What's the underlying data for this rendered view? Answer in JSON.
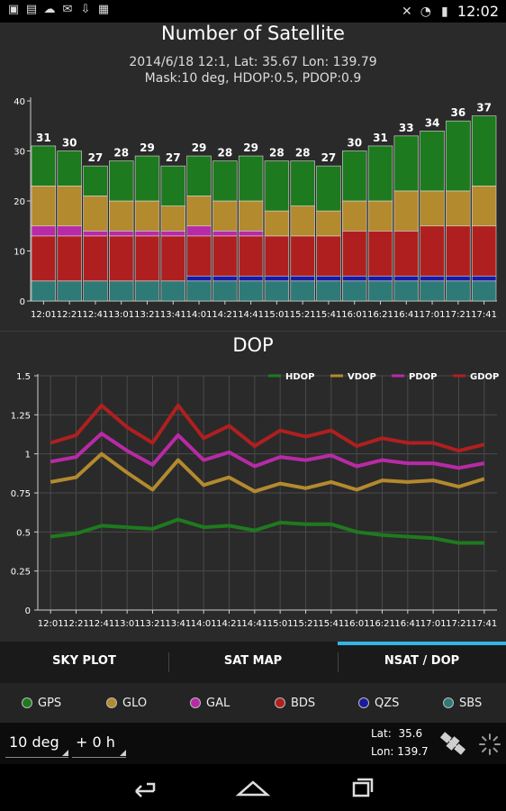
{
  "status_bar": {
    "time": "12:02",
    "left_icons": [
      "gps-notify-icon",
      "image-icon",
      "upload-icon",
      "gmail-icon",
      "download-icon",
      "bag-icon"
    ],
    "right_icons": [
      "gps-off-icon",
      "wifi-icon",
      "battery-icon"
    ]
  },
  "nsat": {
    "title": "Number of Satellite",
    "subtitle_line1": "2014/6/18 12:1, Lat: 35.67 Lon: 139.79",
    "subtitle_line2": "Mask:10 deg, HDOP:0.5, PDOP:0.9"
  },
  "dop": {
    "title": "DOP"
  },
  "tabs": [
    {
      "label": "SKY PLOT",
      "selected": false
    },
    {
      "label": "SAT MAP",
      "selected": false
    },
    {
      "label": "NSAT / DOP",
      "selected": true
    }
  ],
  "constellations": [
    {
      "label": "GPS",
      "color": "#1e7a1e"
    },
    {
      "label": "GLO",
      "color": "#b38a2e"
    },
    {
      "label": "GAL",
      "color": "#b82aa6"
    },
    {
      "label": "BDS",
      "color": "#b01f1f"
    },
    {
      "label": "QZS",
      "color": "#1a1aa0"
    },
    {
      "label": "SBS",
      "color": "#2e7a76"
    }
  ],
  "controls": {
    "mask": "10 deg",
    "offset": "+ 0 h",
    "lat_label": "Lat:",
    "lat_value": "35.6",
    "lon_label": "Lon:",
    "lon_value": "139.7"
  },
  "chart_data": [
    {
      "type": "bar",
      "stacked": true,
      "categories": [
        "12:01",
        "12:21",
        "12:41",
        "13:01",
        "13:21",
        "13:41",
        "14:01",
        "14:21",
        "14:41",
        "15:01",
        "15:21",
        "15:41",
        "16:01",
        "16:21",
        "16:41",
        "17:01",
        "17:21",
        "17:41"
      ],
      "ylim": [
        0,
        40
      ],
      "yticks": [
        0,
        10,
        20,
        30,
        40
      ],
      "totals": [
        31,
        30,
        27,
        28,
        29,
        27,
        29,
        28,
        29,
        28,
        28,
        27,
        30,
        31,
        33,
        34,
        36,
        37
      ],
      "series": [
        {
          "name": "SBS",
          "color": "#2e7a76",
          "values": [
            4,
            4,
            4,
            4,
            4,
            4,
            4,
            4,
            4,
            4,
            4,
            4,
            4,
            4,
            4,
            4,
            4,
            4
          ]
        },
        {
          "name": "QZS",
          "color": "#1a1aa0",
          "values": [
            0,
            0,
            0,
            0,
            0,
            0,
            1,
            1,
            1,
            1,
            1,
            1,
            1,
            1,
            1,
            1,
            1,
            1
          ]
        },
        {
          "name": "BDS",
          "color": "#b01f1f",
          "values": [
            9,
            9,
            9,
            9,
            9,
            9,
            8,
            8,
            8,
            8,
            8,
            8,
            9,
            9,
            9,
            10,
            10,
            10
          ]
        },
        {
          "name": "GAL",
          "color": "#b82aa6",
          "values": [
            2,
            2,
            1,
            1,
            1,
            1,
            2,
            1,
            1,
            0,
            0,
            0,
            0,
            0,
            0,
            0,
            0,
            0
          ]
        },
        {
          "name": "GLO",
          "color": "#b38a2e",
          "values": [
            8,
            8,
            7,
            6,
            6,
            5,
            6,
            6,
            6,
            5,
            6,
            5,
            6,
            6,
            8,
            7,
            7,
            8
          ]
        },
        {
          "name": "GPS",
          "color": "#1e7a1e",
          "values": [
            8,
            7,
            6,
            8,
            9,
            8,
            8,
            8,
            9,
            10,
            9,
            9,
            10,
            11,
            11,
            12,
            14,
            14
          ]
        }
      ]
    },
    {
      "type": "line",
      "x": [
        "12:01",
        "12:21",
        "12:41",
        "13:01",
        "13:21",
        "13:41",
        "14:01",
        "14:21",
        "14:41",
        "15:01",
        "15:21",
        "15:41",
        "16:01",
        "16:21",
        "16:41",
        "17:01",
        "17:21",
        "17:41"
      ],
      "ylim": [
        0,
        1.5
      ],
      "yticks": [
        "0",
        "0.25",
        "0.5",
        "0.75",
        "1",
        "1.25",
        "1.5"
      ],
      "legend_position": "top-right",
      "grid": true,
      "series": [
        {
          "name": "HDOP",
          "color": "#1e7a1e",
          "values": [
            0.47,
            0.49,
            0.54,
            0.53,
            0.52,
            0.58,
            0.53,
            0.54,
            0.51,
            0.56,
            0.55,
            0.55,
            0.5,
            0.48,
            0.47,
            0.46,
            0.43,
            0.43
          ]
        },
        {
          "name": "VDOP",
          "color": "#b38a2e",
          "values": [
            0.82,
            0.85,
            1.0,
            0.88,
            0.77,
            0.96,
            0.8,
            0.85,
            0.76,
            0.81,
            0.78,
            0.82,
            0.77,
            0.83,
            0.82,
            0.83,
            0.79,
            0.84
          ]
        },
        {
          "name": "PDOP",
          "color": "#b82aa6",
          "values": [
            0.95,
            0.98,
            1.13,
            1.02,
            0.93,
            1.12,
            0.96,
            1.01,
            0.92,
            0.98,
            0.96,
            0.99,
            0.92,
            0.96,
            0.94,
            0.94,
            0.91,
            0.94
          ]
        },
        {
          "name": "GDOP",
          "color": "#b01f1f",
          "values": [
            1.07,
            1.12,
            1.31,
            1.17,
            1.07,
            1.31,
            1.1,
            1.18,
            1.05,
            1.15,
            1.11,
            1.15,
            1.05,
            1.1,
            1.07,
            1.07,
            1.02,
            1.06
          ]
        }
      ]
    }
  ]
}
